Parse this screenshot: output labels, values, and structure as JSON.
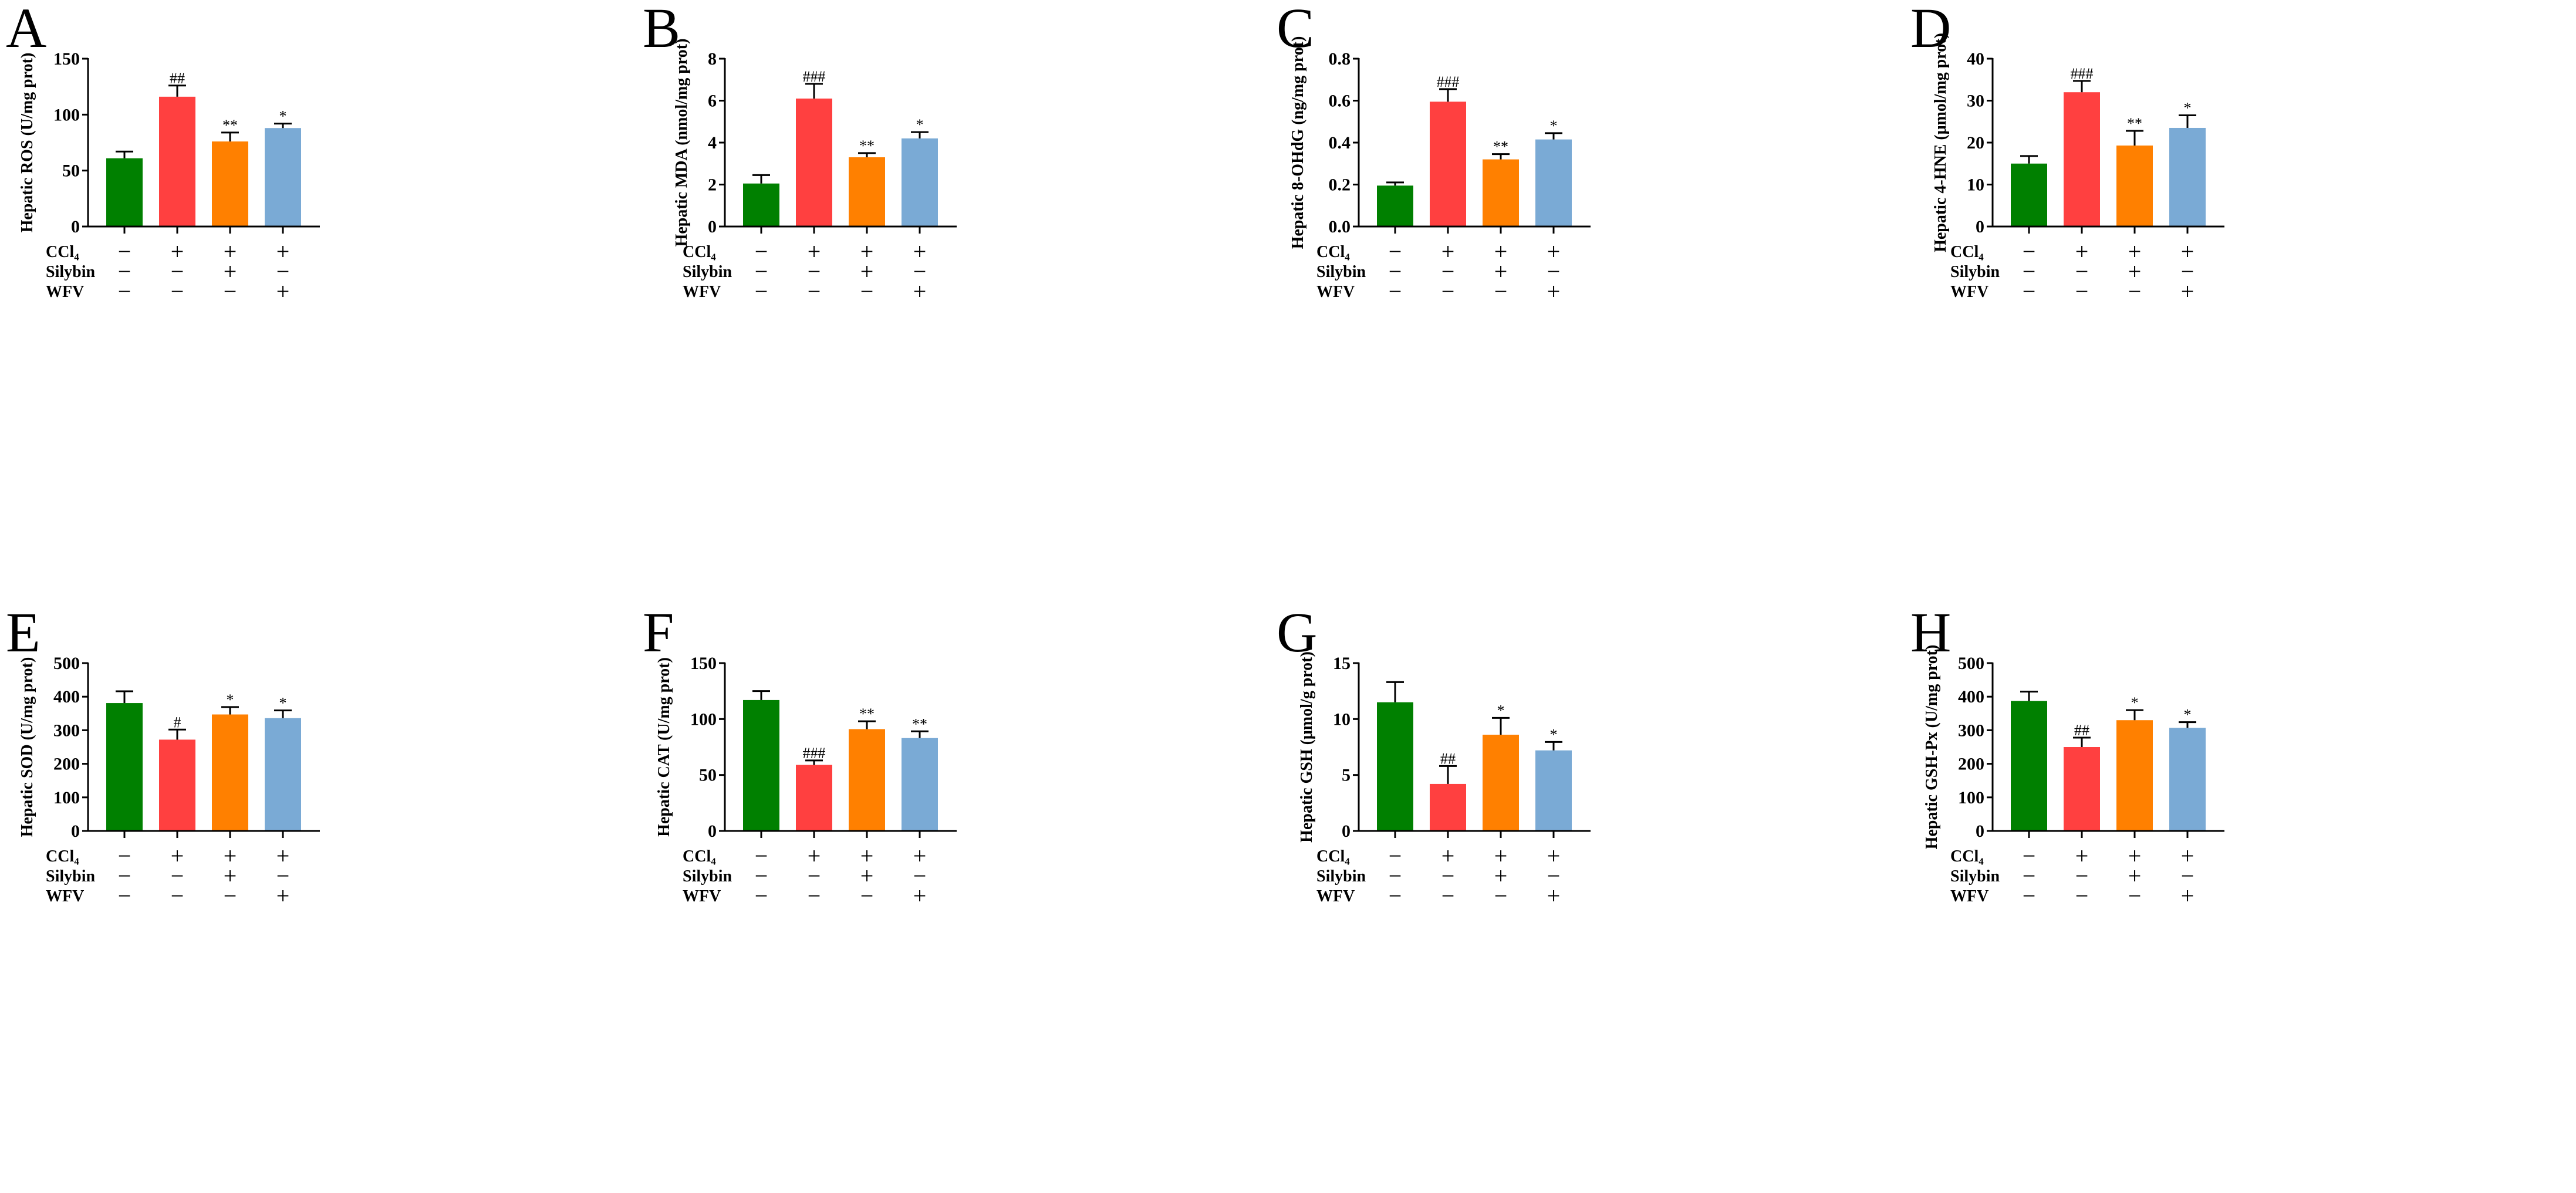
{
  "colors": [
    "#008000",
    "#ff4040",
    "#ff8000",
    "#7aaad5"
  ],
  "treatments": {
    "labels": [
      "CCl₄",
      "Silybin",
      "WFV"
    ],
    "rows": [
      [
        "−",
        "+",
        "+",
        "+"
      ],
      [
        "−",
        "−",
        "+",
        "−"
      ],
      [
        "−",
        "−",
        "−",
        "+"
      ]
    ]
  },
  "chart_data": [
    {
      "type": "bar",
      "panel": "A",
      "ylabel": "Hepatic ROS (U/mg prot)",
      "ylim": [
        0,
        150
      ],
      "yticks": [
        0,
        50,
        100,
        150
      ],
      "values": [
        61,
        116,
        76,
        88
      ],
      "errors": [
        6,
        10,
        8,
        4
      ],
      "annotations": [
        "",
        "##",
        "**",
        "*"
      ]
    },
    {
      "type": "bar",
      "panel": "B",
      "ylabel": "Hepatic MDA (nmol/mg prot)",
      "ylim": [
        0,
        8
      ],
      "yticks": [
        0,
        2,
        4,
        6,
        8
      ],
      "values": [
        2.05,
        6.1,
        3.3,
        4.2
      ],
      "errors": [
        0.4,
        0.7,
        0.2,
        0.3
      ],
      "annotations": [
        "",
        "###",
        "**",
        "*"
      ]
    },
    {
      "type": "bar",
      "panel": "C",
      "ylabel": "Hepatic 8-OHdG (ng/mg prot)",
      "ylim": [
        0,
        0.8
      ],
      "yticks": [
        "0.0",
        "0.2",
        "0.4",
        "0.6",
        "0.8"
      ],
      "values": [
        0.195,
        0.595,
        0.32,
        0.415
      ],
      "errors": [
        0.015,
        0.06,
        0.025,
        0.03
      ],
      "annotations": [
        "",
        "###",
        "**",
        "*"
      ]
    },
    {
      "type": "bar",
      "panel": "D",
      "ylabel": "Hepatic 4-HNE (μmol/mg prot)",
      "ylim": [
        0,
        40
      ],
      "yticks": [
        0,
        10,
        20,
        30,
        40
      ],
      "values": [
        15,
        32,
        19.3,
        23.5
      ],
      "errors": [
        1.8,
        2.7,
        3.5,
        3
      ],
      "annotations": [
        "",
        "###",
        "**",
        "*"
      ]
    },
    {
      "type": "bar",
      "panel": "E",
      "ylabel": "Hepatic SOD (U/mg prot)",
      "ylim": [
        0,
        500
      ],
      "yticks": [
        0,
        100,
        200,
        300,
        400,
        500
      ],
      "values": [
        381,
        272,
        347,
        336
      ],
      "errors": [
        35,
        30,
        22,
        23
      ],
      "annotations": [
        "",
        "#",
        "*",
        "*"
      ]
    },
    {
      "type": "bar",
      "panel": "F",
      "ylabel": "Hepatic CAT (U/mg prot)",
      "ylim": [
        0,
        150
      ],
      "yticks": [
        0,
        50,
        100,
        150
      ],
      "values": [
        117,
        59,
        91,
        83
      ],
      "errors": [
        8,
        4,
        7,
        6
      ],
      "annotations": [
        "",
        "###",
        "**",
        "**"
      ]
    },
    {
      "type": "bar",
      "panel": "G",
      "ylabel": "Hepatic GSH (μmol/g prot)",
      "ylim": [
        0,
        15
      ],
      "yticks": [
        0,
        5,
        10,
        15
      ],
      "values": [
        11.5,
        4.2,
        8.6,
        7.2
      ],
      "errors": [
        1.8,
        1.6,
        1.5,
        0.75
      ],
      "annotations": [
        "",
        "##",
        "*",
        "*"
      ]
    },
    {
      "type": "bar",
      "panel": "H",
      "ylabel": "Hepatic GSH-Px (U/mg prot)",
      "ylim": [
        0,
        500
      ],
      "yticks": [
        0,
        100,
        200,
        300,
        400,
        500
      ],
      "values": [
        387,
        250,
        330,
        307
      ],
      "errors": [
        28,
        28,
        30,
        17
      ],
      "annotations": [
        "",
        "##",
        "*",
        "*"
      ]
    }
  ]
}
